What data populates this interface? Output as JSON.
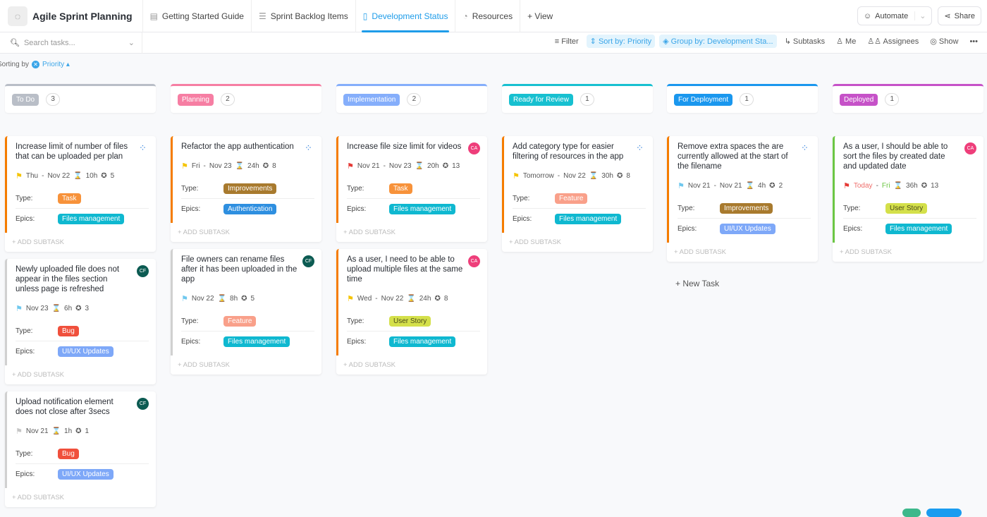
{
  "header": {
    "logo_icon": "spinner-icon",
    "title": "Agile Sprint Planning",
    "tabs": [
      {
        "label": "Getting Started Guide",
        "icon": "doc-icon",
        "active": false
      },
      {
        "label": "Sprint Backlog Items",
        "icon": "list-icon",
        "active": false
      },
      {
        "label": "Development Status",
        "icon": "board-icon",
        "active": true
      },
      {
        "label": "Resources",
        "icon": "gauge-icon",
        "active": false
      }
    ],
    "add_view": "+ View",
    "automate": "Automate",
    "share": "Share"
  },
  "toolbar": {
    "search_placeholder": "Search tasks...",
    "filter": "Filter",
    "sort": "Sort by: Priority",
    "group": "Group by: Development Sta...",
    "subtasks": "Subtasks",
    "me": "Me",
    "assignees": "Assignees",
    "show": "Show",
    "more": "•••"
  },
  "sorting": {
    "label": "Sorting by",
    "field": "Priority"
  },
  "labels": {
    "type": "Type:",
    "epics": "Epics:",
    "add_subtask": "+ Add subtask",
    "new_task": "+ New Task"
  },
  "colors": {
    "Task": "#f7923a",
    "Bug": "#f0503c",
    "Improvements": "#a87a2e",
    "Feature": "#f9a08a",
    "User Story": "#d4e04a",
    "Files management": "#0fb8d0",
    "UI/UX Updates": "#7ea8f8",
    "Authentication": "#2e8fe0",
    "flag_yellow": "#f5c400",
    "flag_lightblue": "#6fc8ee",
    "flag_red": "#e53935",
    "flag_grey": "#c5c5c5",
    "border_orange": "#f57c00",
    "border_grey": "#d0d0d0",
    "border_green": "#6cc644"
  },
  "columns": [
    {
      "name": "To Do",
      "color": "#b9bec7",
      "top": "#b9bec7",
      "count": "3",
      "cards": [
        {
          "title": "Increase limit of number of files that can be uploaded per plan",
          "assignee": "group",
          "flag": "flag_yellow",
          "border": "border_orange",
          "start": "Thu",
          "due": "Nov 22",
          "time": "10h",
          "points": "5",
          "type": "Task",
          "epic": "Files management"
        },
        {
          "title": "Newly uploaded file does not appear in the files section unless page is refreshed",
          "assignee": "CF",
          "flag": "flag_lightblue",
          "border": "border_grey",
          "start": "",
          "due": "Nov 23",
          "time": "6h",
          "points": "3",
          "type": "Bug",
          "epic": "UI/UX Updates"
        },
        {
          "title": "Upload notification element does not close after 3secs",
          "assignee": "CF",
          "flag": "flag_grey",
          "border": "border_grey",
          "start": "",
          "due": "Nov 21",
          "time": "1h",
          "points": "1",
          "type": "Bug",
          "epic": "UI/UX Updates"
        }
      ]
    },
    {
      "name": "Planning",
      "color": "#f67ea3",
      "top": "#f67ea3",
      "count": "2",
      "cards": [
        {
          "title": "Refactor the app authentication",
          "assignee": "group",
          "flag": "flag_yellow",
          "border": "border_orange",
          "start": "Fri",
          "due": "Nov 23",
          "time": "24h",
          "points": "8",
          "type": "Improvements",
          "epic": "Authentication"
        },
        {
          "title": "File owners can rename files after it has been uploaded in the app",
          "assignee": "CF",
          "flag": "flag_lightblue",
          "border": "border_grey",
          "start": "",
          "due": "Nov 22",
          "time": "8h",
          "points": "5",
          "type": "Feature",
          "epic": "Files management"
        }
      ]
    },
    {
      "name": "Implementation",
      "color": "#85aefb",
      "top": "#85aefb",
      "count": "2",
      "cards": [
        {
          "title": "Increase file size limit for videos",
          "assignee": "CA",
          "flag": "flag_red",
          "border": "border_orange",
          "start": "Nov 21",
          "due": "Nov 23",
          "time": "20h",
          "points": "13",
          "type": "Task",
          "epic": "Files management"
        },
        {
          "title": "As a user, I need to be able to upload multiple files at the same time",
          "assignee": "CA",
          "flag": "flag_yellow",
          "border": "border_orange",
          "start": "Wed",
          "due": "Nov 22",
          "time": "24h",
          "points": "8",
          "type": "User Story",
          "epic": "Files management"
        }
      ]
    },
    {
      "name": "Ready for Review",
      "color": "#17c0d0",
      "top": "#17c0d0",
      "count": "1",
      "cards": [
        {
          "title": "Add category type for easier filtering of resources in the app",
          "assignee": "group",
          "flag": "flag_yellow",
          "border": "border_orange",
          "start": "Tomorrow",
          "due": "Nov 22",
          "time": "30h",
          "points": "8",
          "type": "Feature",
          "epic": "Files management"
        }
      ]
    },
    {
      "name": "For Deployment",
      "color": "#1a97ee",
      "top": "#1a97ee",
      "count": "1",
      "new_task": true,
      "cards": [
        {
          "title": "Remove extra spaces the are currently allowed at the start of the filename",
          "assignee": "group",
          "flag": "flag_lightblue",
          "border": "border_orange",
          "start": "Nov 21",
          "due": "Nov 21",
          "time": "4h",
          "points": "2",
          "type": "Improvements",
          "epic": "UI/UX Updates"
        }
      ]
    },
    {
      "name": "Deployed",
      "color": "#c652c8",
      "top": "#c652c8",
      "count": "1",
      "cards": [
        {
          "title": "As a user, I should be able to sort the files by created date and updated date",
          "assignee": "CA",
          "flag": "flag_red",
          "border": "border_green",
          "start": "Today",
          "start_color": "#ef6f6c",
          "due": "Fri",
          "due_color": "#6cc644",
          "time": "36h",
          "points": "13",
          "type": "User Story",
          "epic": "Files management"
        }
      ]
    }
  ]
}
